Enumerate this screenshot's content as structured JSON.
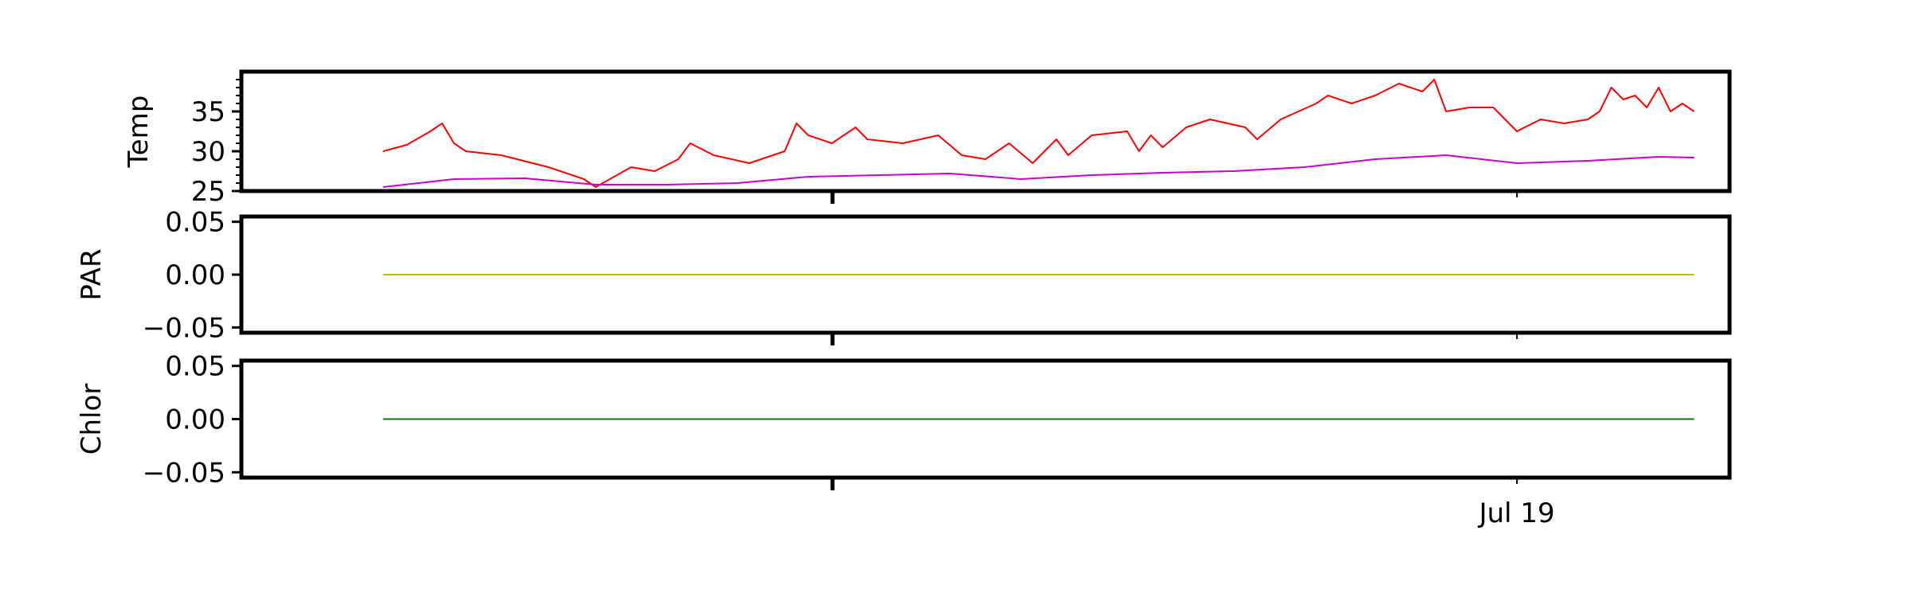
{
  "chart_data": [
    {
      "type": "line",
      "ylabel": "Temp",
      "ylim": [
        25,
        40
      ],
      "yticks": [
        "25",
        "30",
        "35"
      ],
      "ytick_values": [
        25,
        30,
        35
      ],
      "x_range": [
        "2023-07-14T12:00",
        "2023-07-19T18:00"
      ],
      "xtick_labels": [],
      "series": [
        {
          "color": "#ff0000",
          "points": [
            [
              "2023-07-15T00:00",
              30.0
            ],
            [
              "2023-07-15T02:00",
              30.8
            ],
            [
              "2023-07-15T04:00",
              32.5
            ],
            [
              "2023-07-15T05:00",
              33.5
            ],
            [
              "2023-07-15T06:00",
              31.0
            ],
            [
              "2023-07-15T07:00",
              30.0
            ],
            [
              "2023-07-15T10:00",
              29.5
            ],
            [
              "2023-07-15T14:00",
              28.0
            ],
            [
              "2023-07-15T17:00",
              26.5
            ],
            [
              "2023-07-15T18:00",
              25.5
            ],
            [
              "2023-07-15T21:00",
              28.0
            ],
            [
              "2023-07-15T23:00",
              27.5
            ],
            [
              "2023-07-16T01:00",
              29.0
            ],
            [
              "2023-07-16T02:00",
              31.0
            ],
            [
              "2023-07-16T04:00",
              29.5
            ],
            [
              "2023-07-16T07:00",
              28.5
            ],
            [
              "2023-07-16T10:00",
              30.0
            ],
            [
              "2023-07-16T11:00",
              33.5
            ],
            [
              "2023-07-16T12:00",
              32.0
            ],
            [
              "2023-07-16T14:00",
              31.0
            ],
            [
              "2023-07-16T16:00",
              33.0
            ],
            [
              "2023-07-16T17:00",
              31.5
            ],
            [
              "2023-07-16T20:00",
              31.0
            ],
            [
              "2023-07-16T23:00",
              32.0
            ],
            [
              "2023-07-17T01:00",
              29.5
            ],
            [
              "2023-07-17T03:00",
              29.0
            ],
            [
              "2023-07-17T05:00",
              31.0
            ],
            [
              "2023-07-17T07:00",
              28.5
            ],
            [
              "2023-07-17T09:00",
              31.5
            ],
            [
              "2023-07-17T10:00",
              29.5
            ],
            [
              "2023-07-17T12:00",
              32.0
            ],
            [
              "2023-07-17T15:00",
              32.5
            ],
            [
              "2023-07-17T16:00",
              30.0
            ],
            [
              "2023-07-17T17:00",
              32.0
            ],
            [
              "2023-07-17T18:00",
              30.5
            ],
            [
              "2023-07-17T20:00",
              33.0
            ],
            [
              "2023-07-17T22:00",
              34.0
            ],
            [
              "2023-07-18T01:00",
              33.0
            ],
            [
              "2023-07-18T02:00",
              31.5
            ],
            [
              "2023-07-18T04:00",
              34.0
            ],
            [
              "2023-07-18T07:00",
              36.0
            ],
            [
              "2023-07-18T08:00",
              37.0
            ],
            [
              "2023-07-18T10:00",
              36.0
            ],
            [
              "2023-07-18T12:00",
              37.0
            ],
            [
              "2023-07-18T14:00",
              38.5
            ],
            [
              "2023-07-18T16:00",
              37.5
            ],
            [
              "2023-07-18T17:00",
              39.0
            ],
            [
              "2023-07-18T18:00",
              35.0
            ],
            [
              "2023-07-18T20:00",
              35.5
            ],
            [
              "2023-07-18T22:00",
              35.5
            ],
            [
              "2023-07-19T00:00",
              32.5
            ],
            [
              "2023-07-19T02:00",
              34.0
            ],
            [
              "2023-07-19T04:00",
              33.5
            ],
            [
              "2023-07-19T06:00",
              34.0
            ],
            [
              "2023-07-19T07:00",
              35.0
            ],
            [
              "2023-07-19T08:00",
              38.0
            ],
            [
              "2023-07-19T09:00",
              36.5
            ],
            [
              "2023-07-19T10:00",
              37.0
            ],
            [
              "2023-07-19T11:00",
              35.5
            ],
            [
              "2023-07-19T12:00",
              38.0
            ],
            [
              "2023-07-19T13:00",
              35.0
            ],
            [
              "2023-07-19T14:00",
              36.0
            ],
            [
              "2023-07-19T15:00",
              35.0
            ]
          ]
        },
        {
          "color": "#cc00cc",
          "points": [
            [
              "2023-07-15T00:00",
              25.5
            ],
            [
              "2023-07-15T06:00",
              26.5
            ],
            [
              "2023-07-15T12:00",
              26.6
            ],
            [
              "2023-07-15T18:00",
              25.8
            ],
            [
              "2023-07-16T00:00",
              25.8
            ],
            [
              "2023-07-16T06:00",
              26.0
            ],
            [
              "2023-07-16T12:00",
              26.8
            ],
            [
              "2023-07-16T18:00",
              27.0
            ],
            [
              "2023-07-17T00:00",
              27.2
            ],
            [
              "2023-07-17T06:00",
              26.5
            ],
            [
              "2023-07-17T12:00",
              27.0
            ],
            [
              "2023-07-17T18:00",
              27.3
            ],
            [
              "2023-07-18T00:00",
              27.5
            ],
            [
              "2023-07-18T06:00",
              28.0
            ],
            [
              "2023-07-18T12:00",
              29.0
            ],
            [
              "2023-07-18T18:00",
              29.5
            ],
            [
              "2023-07-19T00:00",
              28.5
            ],
            [
              "2023-07-19T06:00",
              28.8
            ],
            [
              "2023-07-19T12:00",
              29.3
            ],
            [
              "2023-07-19T15:00",
              29.2
            ]
          ]
        }
      ]
    },
    {
      "type": "line",
      "ylabel": "PAR",
      "ylim": [
        -0.055,
        0.055
      ],
      "yticks": [
        "−0.05",
        "0.00",
        "0.05"
      ],
      "ytick_values": [
        -0.05,
        0,
        0.05
      ],
      "x_range": [
        "2023-07-14T12:00",
        "2023-07-19T18:00"
      ],
      "xtick_labels": [],
      "series": [
        {
          "color": "#bfbf00",
          "points": [
            [
              "2023-07-15T00:00",
              0
            ],
            [
              "2023-07-19T15:00",
              0
            ]
          ]
        }
      ]
    },
    {
      "type": "line",
      "ylabel": "Chlor",
      "ylim": [
        -0.055,
        0.055
      ],
      "yticks": [
        "−0.05",
        "0.00",
        "0.05"
      ],
      "ytick_values": [
        -0.05,
        0,
        0.05
      ],
      "x_range": [
        "2023-07-14T12:00",
        "2023-07-19T18:00"
      ],
      "xtick_labels": [
        "Jul 19"
      ],
      "xtick_values": [
        "2023-07-19T00:00"
      ],
      "series": [
        {
          "color": "#008000",
          "points": [
            [
              "2023-07-15T00:00",
              0
            ],
            [
              "2023-07-19T15:00",
              0
            ]
          ]
        }
      ]
    }
  ]
}
